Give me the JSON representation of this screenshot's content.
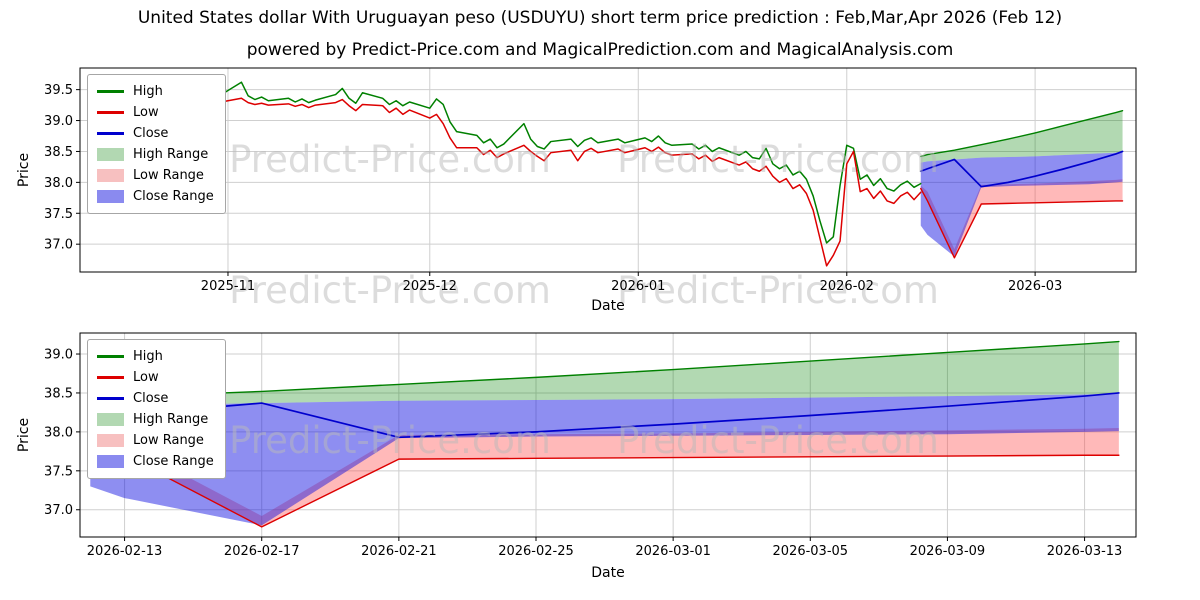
{
  "header": {
    "title": "United States dollar With Uruguayan peso (USDUYU) short term price prediction : Feb,Mar,Apr 2026 (Feb 12)",
    "subtitle": "powered by Predict-Price.com and MagicalPrediction.com and MagicalAnalysis.com"
  },
  "watermark_text": "Predict-Price.com",
  "colors": {
    "high": "#008000",
    "low": "#dd0000",
    "close": "#0000cd",
    "high_range_fill": "rgba(0,128,0,0.30)",
    "low_range_fill": "rgba(255,70,70,0.38)",
    "close_range_fill": "rgba(15,15,225,0.47)",
    "grid": "#cfcfcf",
    "watermark": "#b9b9b9"
  },
  "legend": {
    "position": "upper-left",
    "items": [
      {
        "label": "High",
        "type": "line",
        "color": "#008000"
      },
      {
        "label": "Low",
        "type": "line",
        "color": "#dd0000"
      },
      {
        "label": "Close",
        "type": "line",
        "color": "#0000cd"
      },
      {
        "label": "High Range",
        "type": "patch",
        "color": "#b2d8b2"
      },
      {
        "label": "Low Range",
        "type": "patch",
        "color": "#f7c0c0"
      },
      {
        "label": "Close Range",
        "type": "patch",
        "color": "#8a8aef"
      }
    ]
  },
  "chart_data": [
    {
      "name": "price-history-with-prediction",
      "type": "line",
      "title": "",
      "xlabel": "Date",
      "ylabel": "Price",
      "x_unit": "days since 2025-10-10",
      "xlim": [
        0,
        157
      ],
      "ylim": [
        36.55,
        39.85
      ],
      "yticks": [
        37.0,
        37.5,
        38.0,
        38.5,
        39.0,
        39.5
      ],
      "xticks": [
        {
          "day": 22,
          "label": "2025-11"
        },
        {
          "day": 52,
          "label": "2025-12"
        },
        {
          "day": 83,
          "label": "2026-01"
        },
        {
          "day": 114,
          "label": "2026-02"
        },
        {
          "day": 142,
          "label": "2026-03"
        }
      ],
      "grid": true,
      "shows_prediction_overlay": true,
      "history": {
        "days": [
          3,
          4,
          5,
          6,
          7,
          10,
          11,
          12,
          13,
          14,
          17,
          18,
          19,
          20,
          21,
          24,
          25,
          26,
          27,
          28,
          31,
          32,
          33,
          34,
          35,
          38,
          39,
          40,
          41,
          42,
          45,
          46,
          47,
          48,
          49,
          52,
          53,
          54,
          55,
          56,
          59,
          60,
          61,
          62,
          63,
          66,
          67,
          68,
          69,
          70,
          73,
          74,
          75,
          76,
          77,
          80,
          81,
          84,
          85,
          86,
          87,
          88,
          91,
          92,
          93,
          94,
          95,
          98,
          99,
          100,
          101,
          102,
          103,
          104,
          105,
          106,
          107,
          108,
          109,
          110,
          111,
          112,
          113,
          114,
          115,
          116,
          117,
          118,
          119,
          120,
          121,
          122,
          123,
          124,
          125
        ],
        "high": [
          39.58,
          39.45,
          39.5,
          39.4,
          39.36,
          39.44,
          39.35,
          39.42,
          39.33,
          39.45,
          39.4,
          39.34,
          39.43,
          39.36,
          39.42,
          39.62,
          39.4,
          39.34,
          39.38,
          39.32,
          39.36,
          39.3,
          39.35,
          39.29,
          39.33,
          39.42,
          39.52,
          39.36,
          39.28,
          39.45,
          39.36,
          39.26,
          39.32,
          39.24,
          39.3,
          39.2,
          39.35,
          39.26,
          38.98,
          38.82,
          38.76,
          38.64,
          38.7,
          38.56,
          38.62,
          38.95,
          38.7,
          38.58,
          38.54,
          38.66,
          38.7,
          38.58,
          38.68,
          38.72,
          38.64,
          38.7,
          38.64,
          38.72,
          38.66,
          38.75,
          38.64,
          38.6,
          38.62,
          38.54,
          38.6,
          38.5,
          38.56,
          38.44,
          38.5,
          38.4,
          38.38,
          38.55,
          38.3,
          38.22,
          38.28,
          38.12,
          38.18,
          38.05,
          37.78,
          37.38,
          37.02,
          37.12,
          37.95,
          38.6,
          38.55,
          38.05,
          38.12,
          37.95,
          38.06,
          37.9,
          37.86,
          37.96,
          38.02,
          37.92,
          37.98
        ],
        "low": [
          39.3,
          39.27,
          39.34,
          39.28,
          39.24,
          39.3,
          39.22,
          39.28,
          39.23,
          39.31,
          39.28,
          39.24,
          39.3,
          39.26,
          39.3,
          39.36,
          39.29,
          39.26,
          39.28,
          39.25,
          39.27,
          39.23,
          39.26,
          39.21,
          39.25,
          39.29,
          39.34,
          39.24,
          39.16,
          39.26,
          39.24,
          39.13,
          39.2,
          39.1,
          39.17,
          39.04,
          39.1,
          38.95,
          38.72,
          38.56,
          38.56,
          38.45,
          38.52,
          38.4,
          38.46,
          38.6,
          38.5,
          38.42,
          38.35,
          38.48,
          38.52,
          38.35,
          38.5,
          38.55,
          38.48,
          38.54,
          38.48,
          38.56,
          38.5,
          38.57,
          38.48,
          38.44,
          38.46,
          38.38,
          38.44,
          38.34,
          38.4,
          38.28,
          38.33,
          38.22,
          38.18,
          38.26,
          38.1,
          38.0,
          38.06,
          37.9,
          37.96,
          37.82,
          37.55,
          37.1,
          36.65,
          36.82,
          37.05,
          38.3,
          38.5,
          37.85,
          37.9,
          37.74,
          37.86,
          37.7,
          37.66,
          37.78,
          37.84,
          37.72,
          37.84
        ]
      }
    },
    {
      "name": "prediction-detail",
      "type": "line",
      "title": "",
      "xlabel": "Date",
      "ylabel": "Price",
      "x_unit": "days since 2025-10-10",
      "xlim": [
        124.7,
        155.5
      ],
      "ylim": [
        36.65,
        39.27
      ],
      "yticks": [
        37.0,
        37.5,
        38.0,
        38.5,
        39.0
      ],
      "xticks": [
        {
          "day": 126,
          "label": "2026-02-13"
        },
        {
          "day": 130,
          "label": "2026-02-17"
        },
        {
          "day": 134,
          "label": "2026-02-21"
        },
        {
          "day": 138,
          "label": "2026-02-25"
        },
        {
          "day": 142,
          "label": "2026-03-01"
        },
        {
          "day": 146,
          "label": "2026-03-05"
        },
        {
          "day": 150,
          "label": "2026-03-09"
        },
        {
          "day": 154,
          "label": "2026-03-13"
        }
      ],
      "grid": true,
      "prediction": {
        "days": [
          125,
          126,
          130,
          134,
          138,
          142,
          146,
          150,
          154,
          155
        ],
        "dates": [
          "2026-02-12",
          "2026-02-13",
          "2026-02-17",
          "2026-02-21",
          "2026-02-25",
          "2026-03-01",
          "2026-03-05",
          "2026-03-09",
          "2026-03-13",
          "2026-03-14"
        ],
        "high": [
          38.42,
          38.45,
          38.52,
          38.61,
          38.7,
          38.8,
          38.91,
          39.02,
          39.13,
          39.16
        ],
        "close": [
          38.18,
          38.22,
          38.37,
          37.93,
          38.0,
          38.1,
          38.21,
          38.33,
          38.46,
          38.5
        ],
        "low": [
          37.9,
          37.7,
          36.78,
          37.65,
          37.66,
          37.67,
          37.68,
          37.69,
          37.7,
          37.7
        ],
        "high_range_lower": [
          38.32,
          38.34,
          38.37,
          38.4,
          38.41,
          38.42,
          38.44,
          38.46,
          38.48,
          38.49
        ],
        "close_range_upper": [
          38.32,
          38.34,
          38.37,
          38.4,
          38.41,
          38.42,
          38.44,
          38.46,
          38.48,
          38.49
        ],
        "close_range_lower": [
          37.3,
          37.15,
          36.8,
          37.92,
          37.94,
          37.95,
          37.96,
          37.97,
          38.0,
          38.01
        ],
        "low_range_upper": [
          37.95,
          37.85,
          36.92,
          37.96,
          37.97,
          37.98,
          38.0,
          38.02,
          38.04,
          38.05
        ],
        "low_range_lower": [
          37.9,
          37.7,
          36.78,
          37.65,
          37.66,
          37.67,
          37.68,
          37.69,
          37.7,
          37.7
        ]
      }
    }
  ]
}
